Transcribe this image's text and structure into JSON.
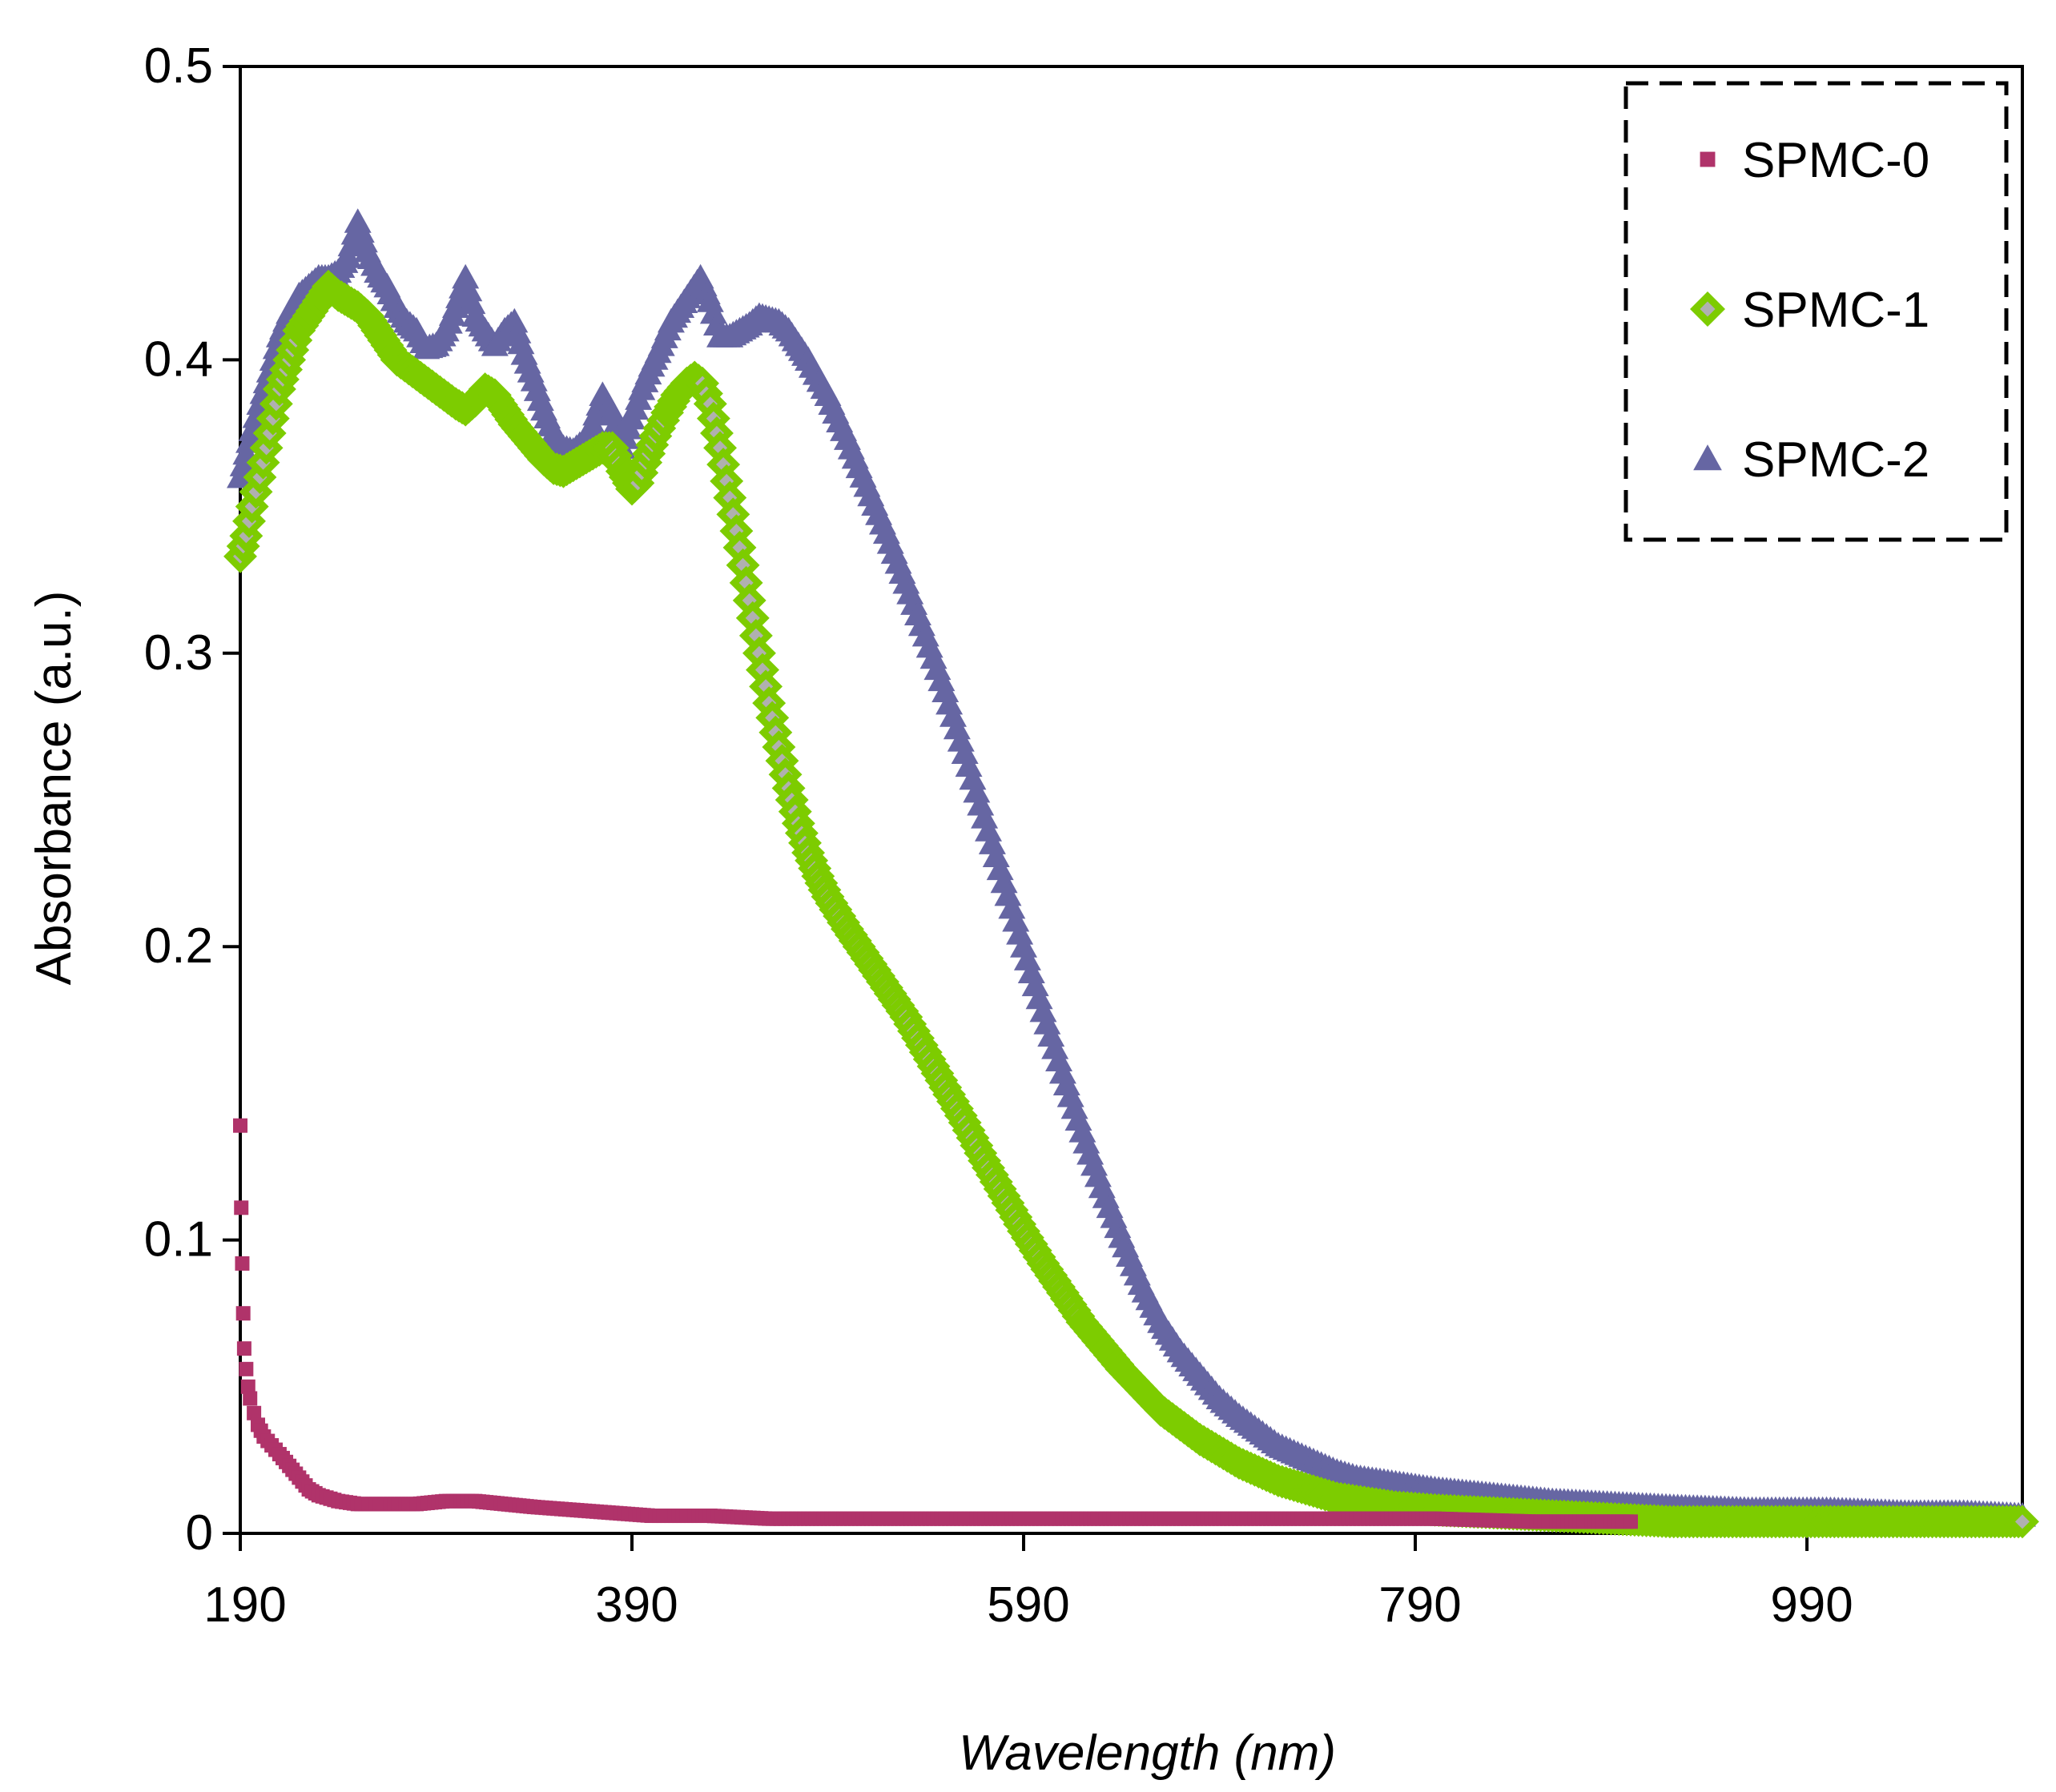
{
  "chart_data": {
    "type": "scatter",
    "title": "",
    "xlabel": "Wavelength (nm)",
    "ylabel": "Absorbance (a.u.)",
    "xlim": [
      190,
      1100
    ],
    "ylim": [
      0,
      0.5
    ],
    "x_ticks": [
      190,
      390,
      590,
      790,
      990
    ],
    "x_tick_labels": [
      "190",
      "390",
      "590",
      "790",
      "990"
    ],
    "y_ticks": [
      0,
      0.1,
      0.2,
      0.3,
      0.4,
      0.5
    ],
    "y_tick_labels": [
      "0",
      "0.1",
      "0.2",
      "0.3",
      "0.4",
      "0.5"
    ],
    "grid": false,
    "legend_position": "top-right",
    "series": [
      {
        "name": "SPMC-0",
        "marker": "square",
        "color": "#b0336a",
        "points": [
          [
            190,
            0.139
          ],
          [
            190.5,
            0.111
          ],
          [
            191,
            0.092
          ],
          [
            191.5,
            0.075
          ],
          [
            192,
            0.063
          ],
          [
            193,
            0.056
          ],
          [
            194,
            0.05
          ],
          [
            195,
            0.046
          ],
          [
            197,
            0.041
          ],
          [
            199,
            0.037
          ],
          [
            202,
            0.033
          ],
          [
            206,
            0.03
          ],
          [
            210,
            0.027
          ],
          [
            215,
            0.023
          ],
          [
            220,
            0.019
          ],
          [
            225,
            0.015
          ],
          [
            230,
            0.013
          ],
          [
            240,
            0.011
          ],
          [
            250,
            0.01
          ],
          [
            265,
            0.01
          ],
          [
            280,
            0.01
          ],
          [
            295,
            0.011
          ],
          [
            310,
            0.011
          ],
          [
            325,
            0.01
          ],
          [
            340,
            0.009
          ],
          [
            360,
            0.008
          ],
          [
            380,
            0.007
          ],
          [
            400,
            0.006
          ],
          [
            430,
            0.006
          ],
          [
            460,
            0.005
          ],
          [
            500,
            0.005
          ],
          [
            550,
            0.005
          ],
          [
            600,
            0.005
          ],
          [
            650,
            0.005
          ],
          [
            700,
            0.005
          ],
          [
            750,
            0.005
          ],
          [
            800,
            0.005
          ],
          [
            850,
            0.004
          ],
          [
            900,
            0.004
          ]
        ]
      },
      {
        "name": "SPMC-1",
        "marker": "diamond",
        "color": "#7dcc00",
        "points": [
          [
            190,
            0.333
          ],
          [
            193,
            0.34
          ],
          [
            196,
            0.35
          ],
          [
            200,
            0.36
          ],
          [
            205,
            0.375
          ],
          [
            210,
            0.39
          ],
          [
            215,
            0.4
          ],
          [
            220,
            0.41
          ],
          [
            225,
            0.415
          ],
          [
            230,
            0.42
          ],
          [
            235,
            0.425
          ],
          [
            240,
            0.422
          ],
          [
            245,
            0.42
          ],
          [
            250,
            0.418
          ],
          [
            255,
            0.415
          ],
          [
            260,
            0.41
          ],
          [
            265,
            0.405
          ],
          [
            270,
            0.4
          ],
          [
            280,
            0.395
          ],
          [
            290,
            0.39
          ],
          [
            300,
            0.385
          ],
          [
            305,
            0.383
          ],
          [
            310,
            0.386
          ],
          [
            315,
            0.39
          ],
          [
            320,
            0.388
          ],
          [
            325,
            0.383
          ],
          [
            330,
            0.378
          ],
          [
            335,
            0.374
          ],
          [
            340,
            0.37
          ],
          [
            345,
            0.366
          ],
          [
            350,
            0.363
          ],
          [
            355,
            0.362
          ],
          [
            360,
            0.364
          ],
          [
            365,
            0.366
          ],
          [
            370,
            0.368
          ],
          [
            375,
            0.37
          ],
          [
            380,
            0.37
          ],
          [
            385,
            0.362
          ],
          [
            390,
            0.356
          ],
          [
            393,
            0.358
          ],
          [
            397,
            0.365
          ],
          [
            402,
            0.374
          ],
          [
            408,
            0.382
          ],
          [
            413,
            0.388
          ],
          [
            418,
            0.392
          ],
          [
            422,
            0.394
          ],
          [
            426,
            0.392
          ],
          [
            430,
            0.385
          ],
          [
            435,
            0.37
          ],
          [
            440,
            0.353
          ],
          [
            445,
            0.336
          ],
          [
            450,
            0.318
          ],
          [
            455,
            0.3
          ],
          [
            460,
            0.283
          ],
          [
            465,
            0.268
          ],
          [
            470,
            0.254
          ],
          [
            475,
            0.242
          ],
          [
            480,
            0.232
          ],
          [
            485,
            0.224
          ],
          [
            490,
            0.217
          ],
          [
            500,
            0.206
          ],
          [
            510,
            0.196
          ],
          [
            520,
            0.186
          ],
          [
            530,
            0.176
          ],
          [
            540,
            0.164
          ],
          [
            550,
            0.152
          ],
          [
            560,
            0.14
          ],
          [
            570,
            0.127
          ],
          [
            580,
            0.115
          ],
          [
            590,
            0.103
          ],
          [
            600,
            0.092
          ],
          [
            610,
            0.082
          ],
          [
            620,
            0.072
          ],
          [
            630,
            0.064
          ],
          [
            640,
            0.056
          ],
          [
            650,
            0.049
          ],
          [
            660,
            0.042
          ],
          [
            670,
            0.037
          ],
          [
            680,
            0.032
          ],
          [
            690,
            0.028
          ],
          [
            700,
            0.024
          ],
          [
            710,
            0.021
          ],
          [
            720,
            0.018
          ],
          [
            730,
            0.016
          ],
          [
            740,
            0.014
          ],
          [
            750,
            0.012
          ],
          [
            760,
            0.011
          ],
          [
            780,
            0.009
          ],
          [
            800,
            0.008
          ],
          [
            830,
            0.007
          ],
          [
            860,
            0.006
          ],
          [
            890,
            0.005
          ],
          [
            920,
            0.004
          ],
          [
            960,
            0.004
          ],
          [
            1000,
            0.004
          ],
          [
            1040,
            0.004
          ],
          [
            1070,
            0.004
          ],
          [
            1100,
            0.004
          ]
        ]
      },
      {
        "name": "SPMC-2",
        "marker": "triangle",
        "color": "#6666a3",
        "points": [
          [
            190,
            0.36
          ],
          [
            193,
            0.368
          ],
          [
            196,
            0.376
          ],
          [
            200,
            0.385
          ],
          [
            205,
            0.396
          ],
          [
            210,
            0.408
          ],
          [
            215,
            0.416
          ],
          [
            220,
            0.422
          ],
          [
            225,
            0.425
          ],
          [
            230,
            0.428
          ],
          [
            235,
            0.428
          ],
          [
            240,
            0.43
          ],
          [
            245,
            0.435
          ],
          [
            250,
            0.447
          ],
          [
            255,
            0.437
          ],
          [
            260,
            0.43
          ],
          [
            265,
            0.425
          ],
          [
            270,
            0.418
          ],
          [
            275,
            0.413
          ],
          [
            280,
            0.41
          ],
          [
            285,
            0.404
          ],
          [
            290,
            0.405
          ],
          [
            295,
            0.41
          ],
          [
            300,
            0.418
          ],
          [
            305,
            0.428
          ],
          [
            310,
            0.415
          ],
          [
            315,
            0.41
          ],
          [
            320,
            0.405
          ],
          [
            325,
            0.41
          ],
          [
            330,
            0.413
          ],
          [
            335,
            0.402
          ],
          [
            340,
            0.393
          ],
          [
            345,
            0.383
          ],
          [
            350,
            0.375
          ],
          [
            355,
            0.37
          ],
          [
            360,
            0.369
          ],
          [
            365,
            0.372
          ],
          [
            370,
            0.378
          ],
          [
            375,
            0.388
          ],
          [
            380,
            0.382
          ],
          [
            385,
            0.37
          ],
          [
            390,
            0.38
          ],
          [
            395,
            0.39
          ],
          [
            400,
            0.398
          ],
          [
            405,
            0.405
          ],
          [
            410,
            0.413
          ],
          [
            415,
            0.418
          ],
          [
            420,
            0.423
          ],
          [
            425,
            0.428
          ],
          [
            430,
            0.42
          ],
          [
            435,
            0.408
          ],
          [
            440,
            0.408
          ],
          [
            445,
            0.41
          ],
          [
            450,
            0.412
          ],
          [
            455,
            0.415
          ],
          [
            460,
            0.414
          ],
          [
            465,
            0.413
          ],
          [
            470,
            0.41
          ],
          [
            475,
            0.405
          ],
          [
            480,
            0.4
          ],
          [
            490,
            0.388
          ],
          [
            500,
            0.373
          ],
          [
            510,
            0.357
          ],
          [
            520,
            0.341
          ],
          [
            530,
            0.324
          ],
          [
            540,
            0.306
          ],
          [
            550,
            0.287
          ],
          [
            560,
            0.266
          ],
          [
            570,
            0.244
          ],
          [
            580,
            0.222
          ],
          [
            590,
            0.2
          ],
          [
            600,
            0.178
          ],
          [
            610,
            0.157
          ],
          [
            620,
            0.137
          ],
          [
            630,
            0.118
          ],
          [
            640,
            0.101
          ],
          [
            650,
            0.085
          ],
          [
            660,
            0.072
          ],
          [
            670,
            0.062
          ],
          [
            680,
            0.054
          ],
          [
            690,
            0.046
          ],
          [
            700,
            0.04
          ],
          [
            710,
            0.035
          ],
          [
            720,
            0.03
          ],
          [
            730,
            0.027
          ],
          [
            740,
            0.024
          ],
          [
            750,
            0.021
          ],
          [
            760,
            0.019
          ],
          [
            780,
            0.017
          ],
          [
            800,
            0.015
          ],
          [
            830,
            0.013
          ],
          [
            860,
            0.011
          ],
          [
            890,
            0.01
          ],
          [
            920,
            0.009
          ],
          [
            960,
            0.008
          ],
          [
            1000,
            0.008
          ],
          [
            1040,
            0.007
          ],
          [
            1070,
            0.007
          ],
          [
            1100,
            0.006
          ]
        ]
      }
    ]
  }
}
